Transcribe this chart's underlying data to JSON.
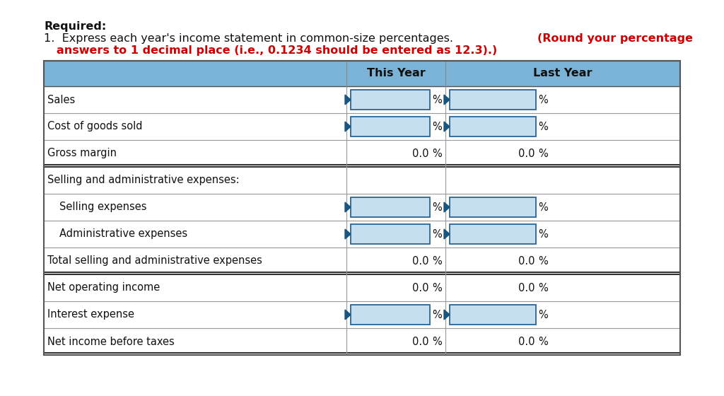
{
  "title_line1": "Required:",
  "title_line2_normal": "1.  Express each year's income statement in common-size percentages. ",
  "title_line2_red": "(Round your percentage",
  "title_line3_red": "answers to 1 decimal place (i.e., 0.1234 should be entered as 12.3).)",
  "header_col2": "This Year",
  "header_col3": "Last Year",
  "header_bg": "#7ab3d5",
  "rows": [
    {
      "label": "Sales",
      "indent": false,
      "this_year": null,
      "last_year": null,
      "input_box": true
    },
    {
      "label": "Cost of goods sold",
      "indent": false,
      "this_year": null,
      "last_year": null,
      "input_box": true
    },
    {
      "label": "Gross margin",
      "indent": false,
      "this_year": "0.0",
      "last_year": "0.0",
      "input_box": false,
      "bottom_double": true
    },
    {
      "label": "Selling and administrative expenses:",
      "indent": false,
      "this_year": null,
      "last_year": null,
      "input_box": false,
      "empty_row": true
    },
    {
      "label": "Selling expenses",
      "indent": true,
      "this_year": null,
      "last_year": null,
      "input_box": true
    },
    {
      "label": "Administrative expenses",
      "indent": true,
      "this_year": null,
      "last_year": null,
      "input_box": true
    },
    {
      "label": "Total selling and administrative expenses",
      "indent": false,
      "this_year": "0.0",
      "last_year": "0.0",
      "input_box": false,
      "bottom_double": true
    },
    {
      "label": "Net operating income",
      "indent": false,
      "this_year": "0.0",
      "last_year": "0.0",
      "input_box": false,
      "bottom_double": false
    },
    {
      "label": "Interest expense",
      "indent": false,
      "this_year": null,
      "last_year": null,
      "input_box": true
    },
    {
      "label": "Net income before taxes",
      "indent": false,
      "this_year": "0.0",
      "last_year": "0.0",
      "input_box": false,
      "bottom_double": true
    }
  ],
  "input_box_fill": "#c5dff0",
  "input_box_border": "#2a6496",
  "arrow_color": "#1a5580",
  "bg_color": "#ffffff",
  "row_border_color": "#999999",
  "table_outer_color": "#555555",
  "double_line_color": "#333333"
}
